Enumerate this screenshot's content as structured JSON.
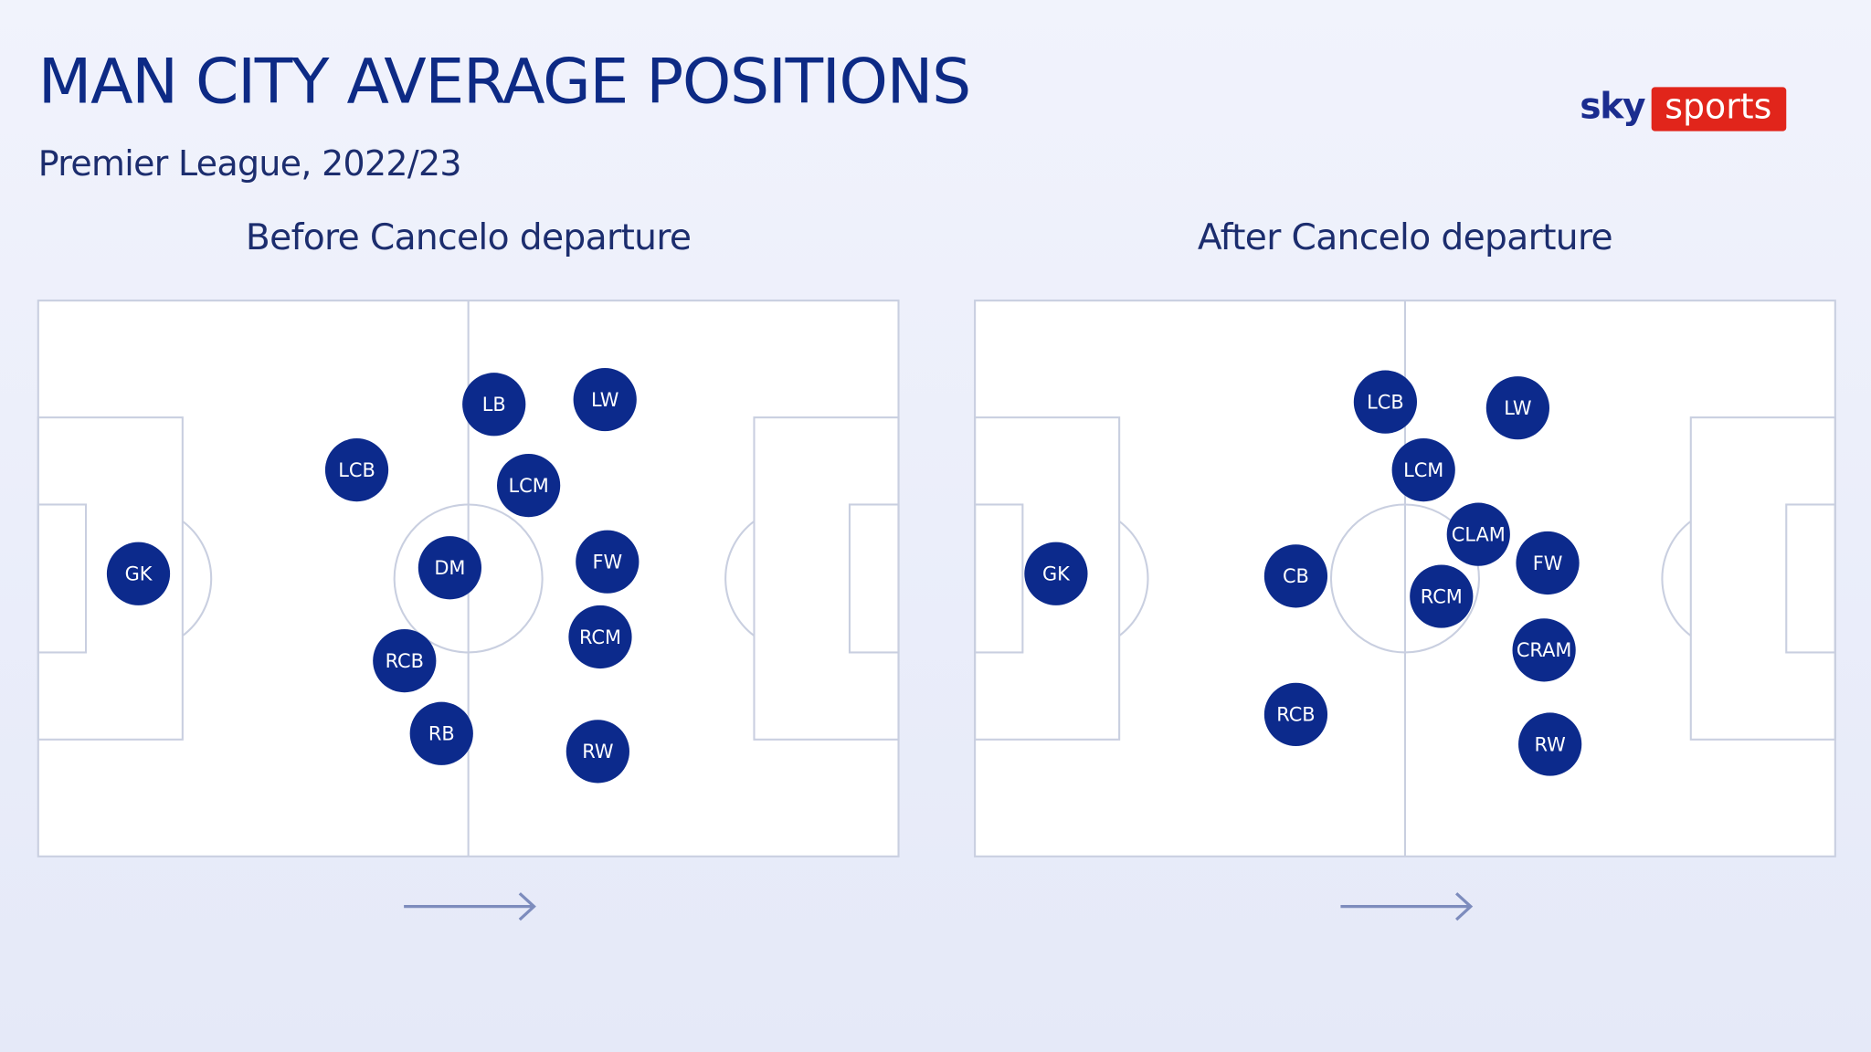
{
  "header": {
    "title": "MAN CITY AVERAGE POSITIONS",
    "subtitle": "Premier League, 2022/23"
  },
  "logo": {
    "left": "sky",
    "right": "sports"
  },
  "pitches": [
    {
      "title": "Before Cancelo departure",
      "players": [
        {
          "label": "GK"
        },
        {
          "label": "LCB"
        },
        {
          "label": "LB"
        },
        {
          "label": "LW"
        },
        {
          "label": "LCM"
        },
        {
          "label": "DM"
        },
        {
          "label": "FW"
        },
        {
          "label": "RCM"
        },
        {
          "label": "RCB"
        },
        {
          "label": "RB"
        },
        {
          "label": "RW"
        }
      ]
    },
    {
      "title": "After Cancelo departure",
      "players": [
        {
          "label": "LCB"
        },
        {
          "label": "LW"
        },
        {
          "label": "LCM"
        },
        {
          "label": "CLAM"
        },
        {
          "label": "FW"
        },
        {
          "label": "GK"
        },
        {
          "label": "CB"
        },
        {
          "label": "RCM"
        },
        {
          "label": "CRAM"
        },
        {
          "label": "RCB"
        },
        {
          "label": "RW"
        }
      ]
    }
  ]
}
